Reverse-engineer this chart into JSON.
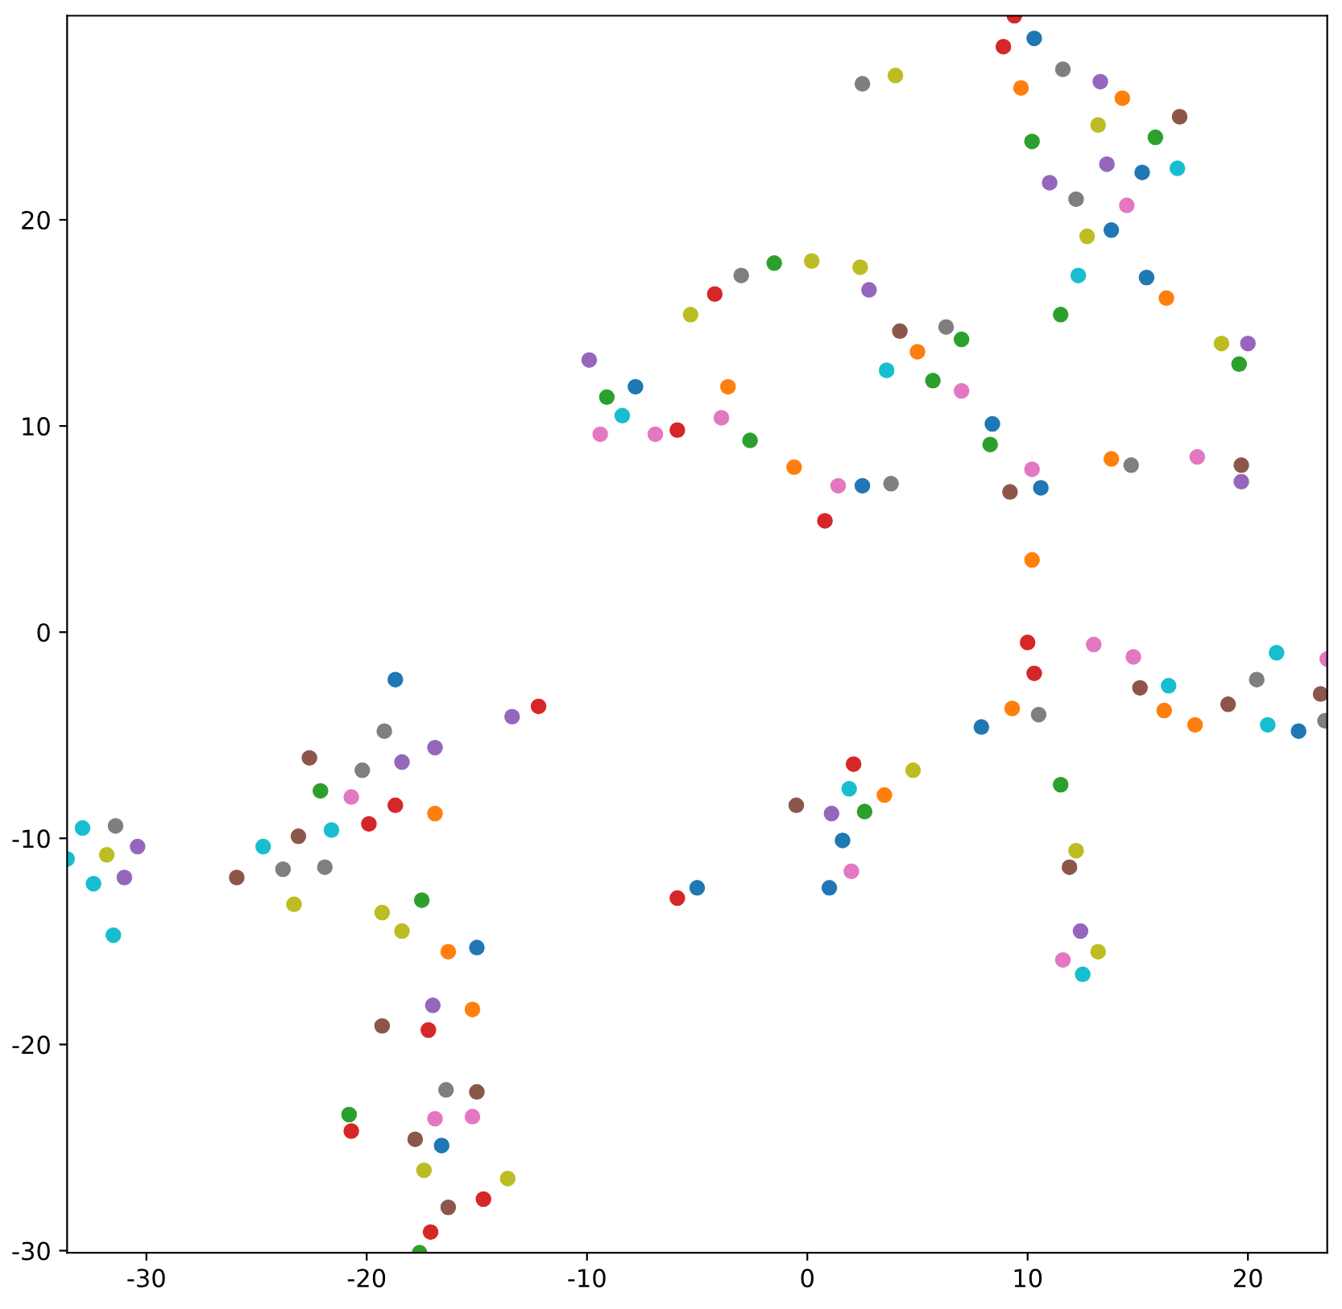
{
  "chart_data": {
    "type": "scatter",
    "marker": "circle",
    "grid": false,
    "xlim": [
      -33.6,
      23.6
    ],
    "ylim": [
      -30.1,
      29.9
    ],
    "xticks": [
      -30,
      -20,
      -10,
      0,
      10,
      20
    ],
    "yticks": [
      -30,
      -20,
      -10,
      0,
      10,
      20
    ],
    "series": [
      {
        "color": "#1f77b4",
        "x": [
          10.3,
          15.2,
          13.8,
          15.4,
          -7.8,
          8.4,
          10.6,
          2.5,
          -18.7,
          7.9,
          22.3,
          1.6,
          1.0,
          -5.0,
          -15.0,
          -16.6
        ],
        "values": [
          28.8,
          22.3,
          19.5,
          17.2,
          11.9,
          10.1,
          7.0,
          7.1,
          -2.3,
          -4.6,
          -4.8,
          -10.1,
          -12.4,
          -12.4,
          -15.3,
          -24.9
        ]
      },
      {
        "color": "#ff7f0e",
        "x": [
          9.7,
          14.3,
          16.3,
          5.0,
          -3.6,
          -0.6,
          13.8,
          10.2,
          9.3,
          16.2,
          17.6,
          3.5,
          -16.9,
          -16.3,
          -15.2
        ],
        "values": [
          26.4,
          25.9,
          16.2,
          13.6,
          11.9,
          8.0,
          8.4,
          3.5,
          -3.7,
          -3.8,
          -4.5,
          -7.9,
          -8.8,
          -15.5,
          -18.3
        ]
      },
      {
        "color": "#2ca02c",
        "x": [
          10.2,
          15.8,
          11.5,
          -1.5,
          7.0,
          5.7,
          -9.1,
          -2.6,
          8.3,
          19.6,
          11.5,
          2.6,
          -22.1,
          -17.5,
          -20.8,
          -17.6
        ],
        "values": [
          23.8,
          24.0,
          15.4,
          17.9,
          14.2,
          12.2,
          11.4,
          9.3,
          9.1,
          13.0,
          -7.4,
          -8.7,
          -7.7,
          -13.0,
          -23.4,
          -30.1
        ]
      },
      {
        "color": "#d62728",
        "x": [
          9.4,
          8.9,
          -4.2,
          -5.9,
          0.8,
          10.0,
          10.3,
          -12.2,
          2.1,
          -18.7,
          -19.9,
          -5.9,
          -17.2,
          -20.7,
          -17.1,
          -14.7
        ],
        "values": [
          29.9,
          28.4,
          16.4,
          9.8,
          5.4,
          -0.5,
          -2.0,
          -3.6,
          -6.4,
          -8.4,
          -9.3,
          -12.9,
          -19.3,
          -24.2,
          -29.1,
          -27.5
        ]
      },
      {
        "color": "#9467bd",
        "x": [
          13.3,
          11.0,
          13.6,
          2.8,
          -9.9,
          20.0,
          19.7,
          1.1,
          -16.9,
          -18.4,
          -30.4,
          -31.0,
          -13.4,
          -17.0,
          12.4
        ],
        "values": [
          26.7,
          21.8,
          22.7,
          16.6,
          13.2,
          14.0,
          7.3,
          -8.8,
          -5.6,
          -6.3,
          -10.4,
          -11.9,
          -4.1,
          -18.1,
          -14.5
        ]
      },
      {
        "color": "#8c564b",
        "x": [
          16.9,
          4.2,
          9.2,
          19.7,
          -0.5,
          15.1,
          19.1,
          23.3,
          11.9,
          -25.9,
          -23.1,
          -22.6,
          -19.3,
          -15.0,
          -17.8,
          -16.3
        ],
        "values": [
          25.0,
          14.6,
          6.8,
          8.1,
          -8.4,
          -2.7,
          -3.5,
          -3.0,
          -11.4,
          -11.9,
          -9.9,
          -6.1,
          -19.1,
          -22.3,
          -24.6,
          -27.9
        ]
      },
      {
        "color": "#e377c2",
        "x": [
          14.5,
          7.0,
          -3.9,
          -9.4,
          -6.9,
          1.4,
          10.2,
          17.7,
          13.0,
          14.8,
          23.6,
          2.0,
          11.6,
          -20.7,
          -16.9,
          -15.2
        ],
        "values": [
          20.7,
          11.7,
          10.4,
          9.6,
          9.6,
          7.1,
          7.9,
          8.5,
          -0.6,
          -1.2,
          -1.3,
          -11.6,
          -15.9,
          -8.0,
          -23.6,
          -23.5
        ]
      },
      {
        "color": "#7f7f7f",
        "x": [
          2.5,
          11.6,
          12.2,
          6.3,
          -3.0,
          3.8,
          14.7,
          10.5,
          20.4,
          23.5,
          -20.2,
          -19.2,
          -23.8,
          -21.9,
          -31.4,
          -16.4
        ],
        "values": [
          26.6,
          27.3,
          21.0,
          14.8,
          17.3,
          7.2,
          8.1,
          -4.0,
          -2.3,
          -4.3,
          -6.7,
          -4.8,
          -11.5,
          -11.4,
          -9.4,
          -22.2
        ]
      },
      {
        "color": "#bcbd22",
        "x": [
          4.0,
          13.2,
          12.7,
          -5.3,
          0.2,
          2.4,
          18.8,
          4.8,
          12.2,
          13.2,
          -23.3,
          -19.3,
          -18.4,
          -31.8,
          -17.4,
          -13.6
        ],
        "values": [
          27.0,
          24.6,
          19.2,
          15.4,
          18.0,
          17.7,
          14.0,
          -6.7,
          -10.6,
          -15.5,
          -13.2,
          -13.6,
          -14.5,
          -10.8,
          -26.1,
          -26.5
        ]
      },
      {
        "color": "#17becf",
        "x": [
          16.8,
          12.3,
          3.6,
          -8.4,
          21.3,
          16.4,
          20.9,
          1.9,
          12.5,
          -21.6,
          -24.7,
          -32.9,
          -33.6,
          -32.4,
          -31.5
        ],
        "values": [
          22.5,
          17.3,
          12.7,
          10.5,
          -1.0,
          -2.6,
          -4.5,
          -7.6,
          -16.6,
          -9.6,
          -10.4,
          -9.5,
          -11.0,
          -12.2,
          -14.7
        ]
      }
    ]
  }
}
